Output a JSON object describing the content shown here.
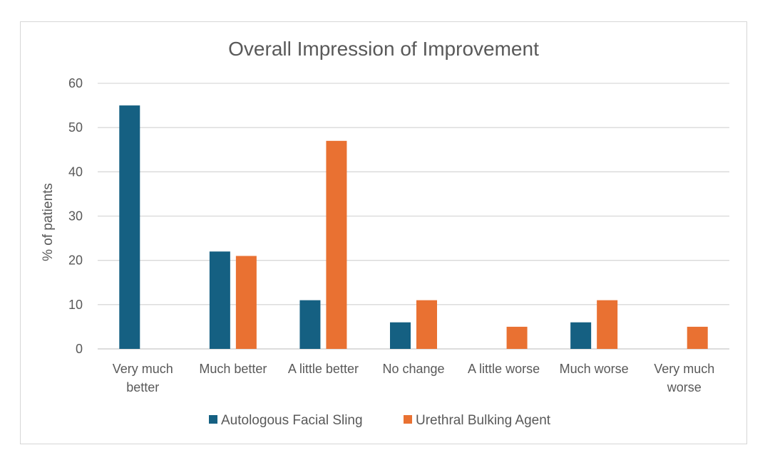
{
  "chart_data": {
    "type": "bar",
    "title": "Overall Impression of Improvement",
    "xlabel": "",
    "ylabel": "% of patients",
    "ylim": [
      0,
      60
    ],
    "yticks": [
      0,
      10,
      20,
      30,
      40,
      50,
      60
    ],
    "grid": true,
    "legend_position": "bottom",
    "categories": [
      [
        "Very much",
        "better"
      ],
      [
        "Much better"
      ],
      [
        "A little better"
      ],
      [
        "No change"
      ],
      [
        "A little worse"
      ],
      [
        "Much worse"
      ],
      [
        "Very much",
        "worse"
      ]
    ],
    "series": [
      {
        "name": "Autologous Facial Sling",
        "color": "#156082",
        "values": [
          55,
          22,
          11,
          6,
          0,
          6,
          0
        ]
      },
      {
        "name": "Urethral Bulking Agent",
        "color": "#E97132",
        "values": [
          0,
          21,
          47,
          11,
          5,
          11,
          5
        ]
      }
    ]
  }
}
